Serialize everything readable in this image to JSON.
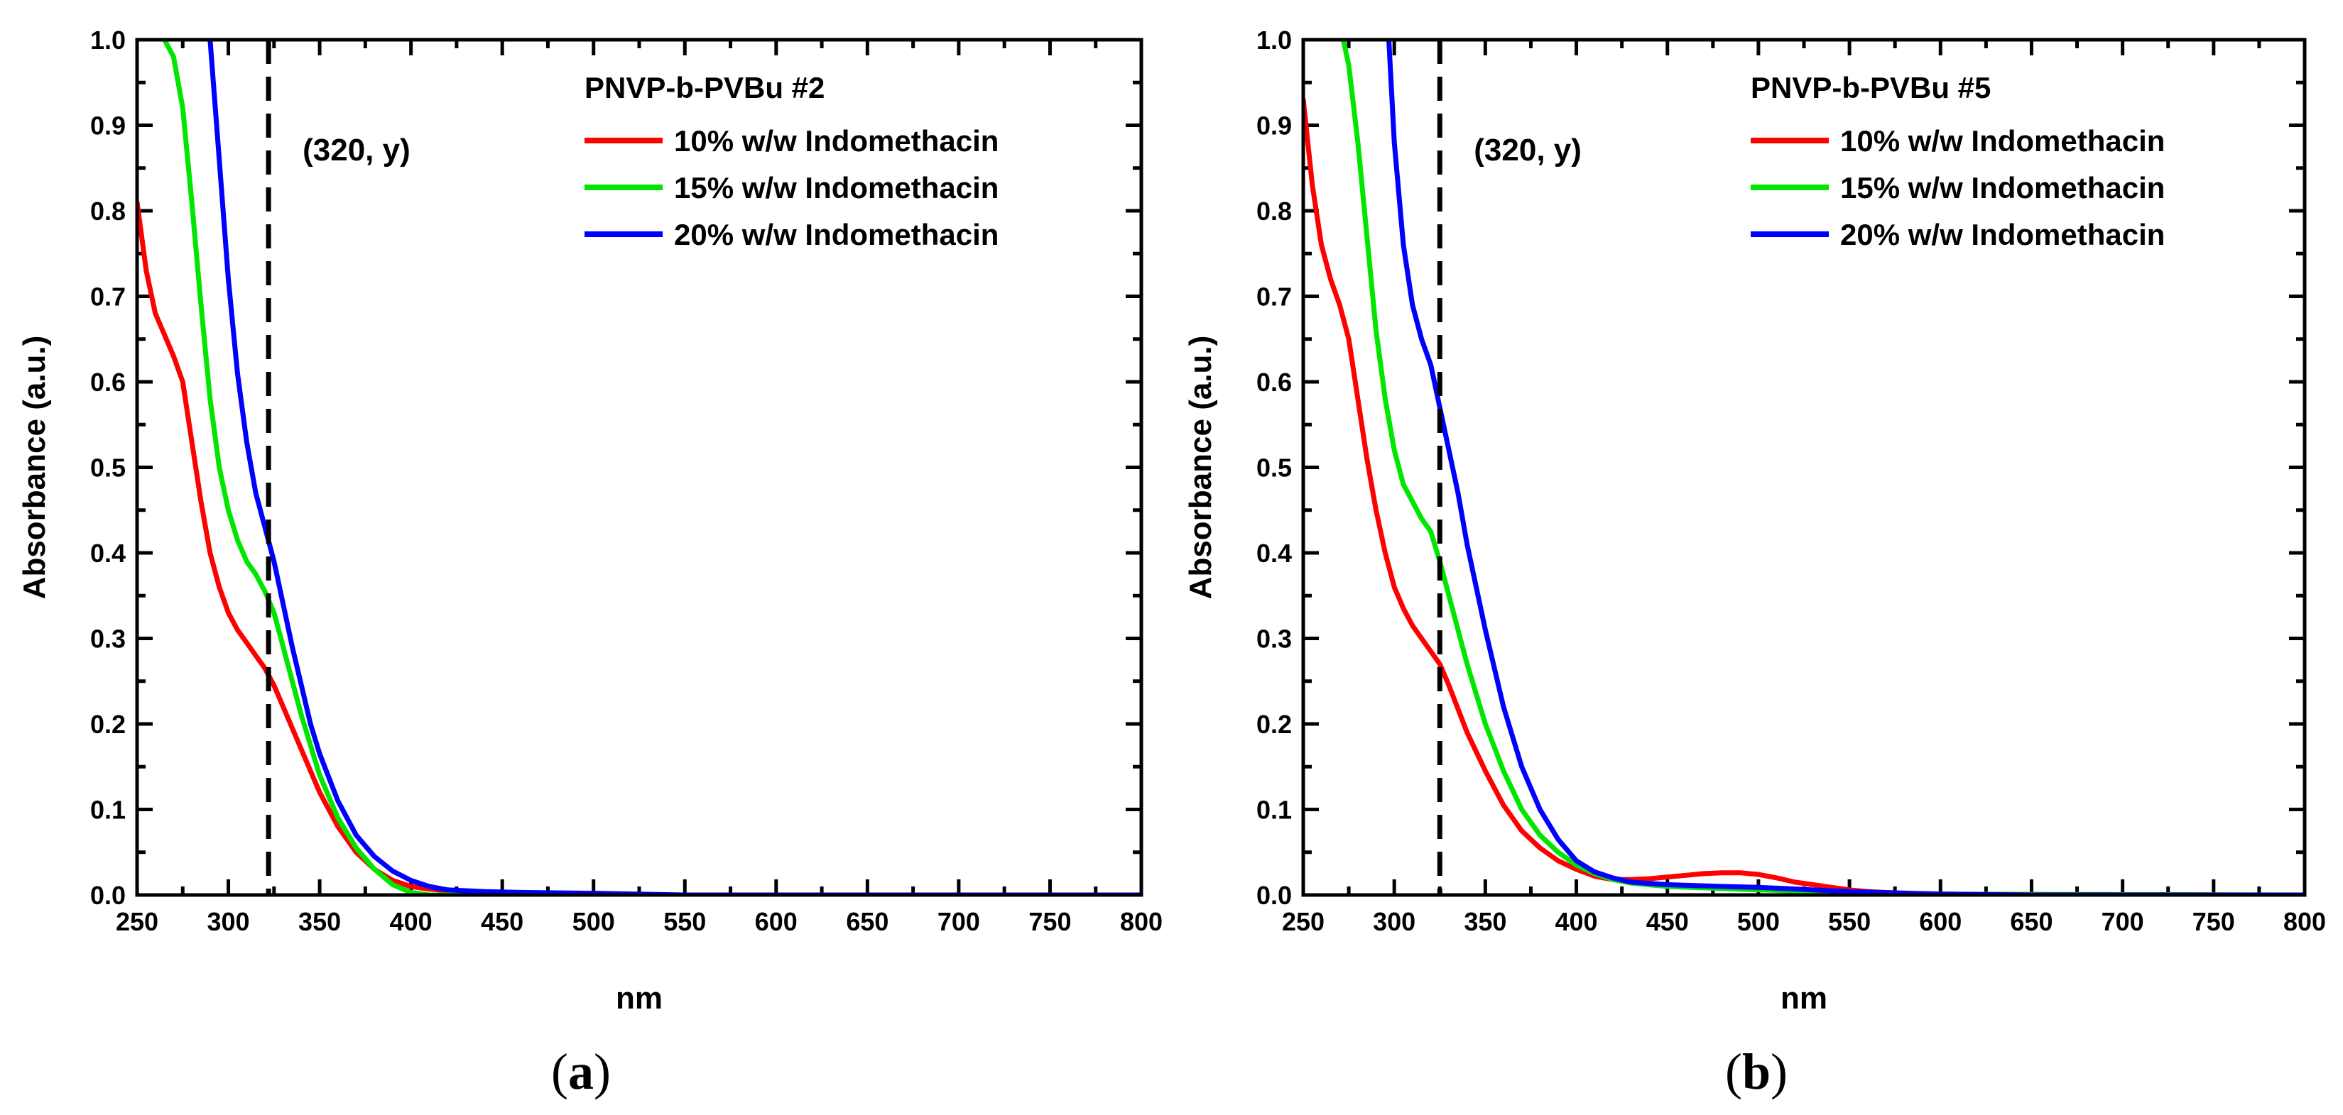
{
  "figure": {
    "captions": [
      {
        "open": "(",
        "letter": "a",
        "close": ")"
      },
      {
        "open": "(",
        "letter": "b",
        "close": ")"
      }
    ]
  },
  "chart_data": [
    {
      "type": "line",
      "title": "PNVP-b-PVBu #2",
      "xlabel": "nm",
      "ylabel": "Absorbance (a.u.)",
      "xlim": [
        250,
        800
      ],
      "ylim": [
        0.0,
        1.0
      ],
      "xticks": [
        250,
        300,
        350,
        400,
        450,
        500,
        550,
        600,
        650,
        700,
        750,
        800
      ],
      "yticks": [
        0.0,
        0.1,
        0.2,
        0.3,
        0.4,
        0.5,
        0.6,
        0.7,
        0.8,
        0.9,
        1.0
      ],
      "xtick_labels": [
        "250",
        "300",
        "350",
        "400",
        "450",
        "500",
        "550",
        "600",
        "650",
        "700",
        "750",
        "800"
      ],
      "ytick_labels": [
        "0.0",
        "0.1",
        "0.2",
        "0.3",
        "0.4",
        "0.5",
        "0.6",
        "0.7",
        "0.8",
        "0.9",
        "1.0"
      ],
      "legend_position": "top-right",
      "annotation": {
        "text": "(320, y)",
        "vline_x": 322
      },
      "series": [
        {
          "name": "10% w/w Indomethacin",
          "color": "#ff0000",
          "x": [
            250,
            255,
            260,
            265,
            270,
            275,
            280,
            285,
            290,
            295,
            300,
            305,
            310,
            315,
            320,
            325,
            330,
            335,
            340,
            345,
            350,
            360,
            370,
            380,
            390,
            400,
            410,
            420,
            440,
            460,
            500,
            550,
            600,
            800
          ],
          "y": [
            0.81,
            0.73,
            0.68,
            0.655,
            0.63,
            0.6,
            0.53,
            0.46,
            0.4,
            0.36,
            0.33,
            0.31,
            0.295,
            0.28,
            0.265,
            0.245,
            0.22,
            0.195,
            0.17,
            0.145,
            0.12,
            0.08,
            0.05,
            0.03,
            0.017,
            0.01,
            0.007,
            0.005,
            0.003,
            0.002,
            0.0,
            0.0,
            0.0,
            0.0
          ]
        },
        {
          "name": "15% w/w Indomethacin",
          "color": "#00e600",
          "x": [
            265,
            270,
            275,
            280,
            285,
            290,
            295,
            300,
            305,
            310,
            315,
            320,
            325,
            330,
            335,
            340,
            345,
            350,
            360,
            370,
            380,
            390,
            400,
            410,
            420,
            450,
            500,
            800
          ],
          "y": [
            1.0,
            0.98,
            0.92,
            0.81,
            0.69,
            0.58,
            0.5,
            0.45,
            0.415,
            0.39,
            0.375,
            0.355,
            0.33,
            0.29,
            0.25,
            0.21,
            0.175,
            0.14,
            0.09,
            0.055,
            0.03,
            0.012,
            0.003,
            0.0,
            0.0,
            0.0,
            0.0,
            0.0
          ]
        },
        {
          "name": "20% w/w Indomethacin",
          "color": "#0000ff",
          "x": [
            290,
            295,
            300,
            305,
            310,
            315,
            320,
            325,
            330,
            335,
            340,
            345,
            350,
            360,
            370,
            380,
            390,
            400,
            410,
            420,
            440,
            460,
            500,
            550,
            800
          ],
          "y": [
            1.0,
            0.86,
            0.72,
            0.61,
            0.53,
            0.47,
            0.43,
            0.39,
            0.34,
            0.29,
            0.245,
            0.2,
            0.165,
            0.11,
            0.07,
            0.045,
            0.028,
            0.017,
            0.01,
            0.006,
            0.004,
            0.003,
            0.002,
            0.0,
            0.0
          ]
        }
      ]
    },
    {
      "type": "line",
      "title": "PNVP-b-PVBu #5",
      "xlabel": "nm",
      "ylabel": "Absorbance (a.u.)",
      "xlim": [
        250,
        800
      ],
      "ylim": [
        0.0,
        1.0
      ],
      "xticks": [
        250,
        300,
        350,
        400,
        450,
        500,
        550,
        600,
        650,
        700,
        750,
        800
      ],
      "yticks": [
        0.0,
        0.1,
        0.2,
        0.3,
        0.4,
        0.5,
        0.6,
        0.7,
        0.8,
        0.9,
        1.0
      ],
      "xtick_labels": [
        "250",
        "300",
        "350",
        "400",
        "450",
        "500",
        "550",
        "600",
        "650",
        "700",
        "750",
        "800"
      ],
      "ytick_labels": [
        "0.0",
        "0.1",
        "0.2",
        "0.3",
        "0.4",
        "0.5",
        "0.6",
        "0.7",
        "0.8",
        "0.9",
        "1.0"
      ],
      "legend_position": "top-right",
      "annotation": {
        "text": "(320, y)",
        "vline_x": 325
      },
      "series": [
        {
          "name": "10% w/w Indomethacin",
          "color": "#ff0000",
          "x": [
            250,
            255,
            260,
            265,
            270,
            275,
            280,
            285,
            290,
            295,
            300,
            305,
            310,
            315,
            320,
            325,
            330,
            340,
            350,
            360,
            370,
            380,
            390,
            400,
            410,
            420,
            430,
            440,
            450,
            460,
            470,
            480,
            490,
            500,
            510,
            520,
            530,
            540,
            550,
            560,
            580,
            600,
            650,
            800
          ],
          "y": [
            0.93,
            0.83,
            0.76,
            0.72,
            0.69,
            0.65,
            0.58,
            0.51,
            0.45,
            0.4,
            0.36,
            0.335,
            0.315,
            0.3,
            0.285,
            0.27,
            0.245,
            0.19,
            0.145,
            0.105,
            0.075,
            0.055,
            0.04,
            0.03,
            0.022,
            0.018,
            0.018,
            0.019,
            0.021,
            0.023,
            0.025,
            0.026,
            0.026,
            0.024,
            0.02,
            0.015,
            0.012,
            0.009,
            0.006,
            0.004,
            0.002,
            0.001,
            0.0,
            0.0
          ]
        },
        {
          "name": "15% w/w Indomethacin",
          "color": "#00e600",
          "x": [
            272,
            275,
            280,
            285,
            290,
            295,
            300,
            305,
            310,
            315,
            320,
            325,
            330,
            340,
            350,
            360,
            370,
            380,
            390,
            400,
            410,
            420,
            430,
            450,
            500,
            550,
            600,
            800
          ],
          "y": [
            1.0,
            0.97,
            0.88,
            0.77,
            0.66,
            0.58,
            0.52,
            0.48,
            0.46,
            0.44,
            0.425,
            0.39,
            0.35,
            0.27,
            0.2,
            0.145,
            0.1,
            0.07,
            0.05,
            0.035,
            0.025,
            0.018,
            0.014,
            0.01,
            0.006,
            0.003,
            0.001,
            0.0
          ]
        },
        {
          "name": "20% w/w Indomethacin",
          "color": "#0000ff",
          "x": [
            297,
            300,
            305,
            310,
            315,
            320,
            325,
            330,
            335,
            340,
            350,
            360,
            370,
            380,
            390,
            400,
            410,
            420,
            430,
            450,
            480,
            500,
            520,
            550,
            600,
            650,
            800
          ],
          "y": [
            1.0,
            0.88,
            0.76,
            0.69,
            0.65,
            0.62,
            0.57,
            0.52,
            0.47,
            0.41,
            0.31,
            0.22,
            0.15,
            0.1,
            0.065,
            0.04,
            0.027,
            0.02,
            0.015,
            0.012,
            0.01,
            0.009,
            0.007,
            0.004,
            0.001,
            0.0,
            0.0
          ]
        }
      ]
    }
  ]
}
